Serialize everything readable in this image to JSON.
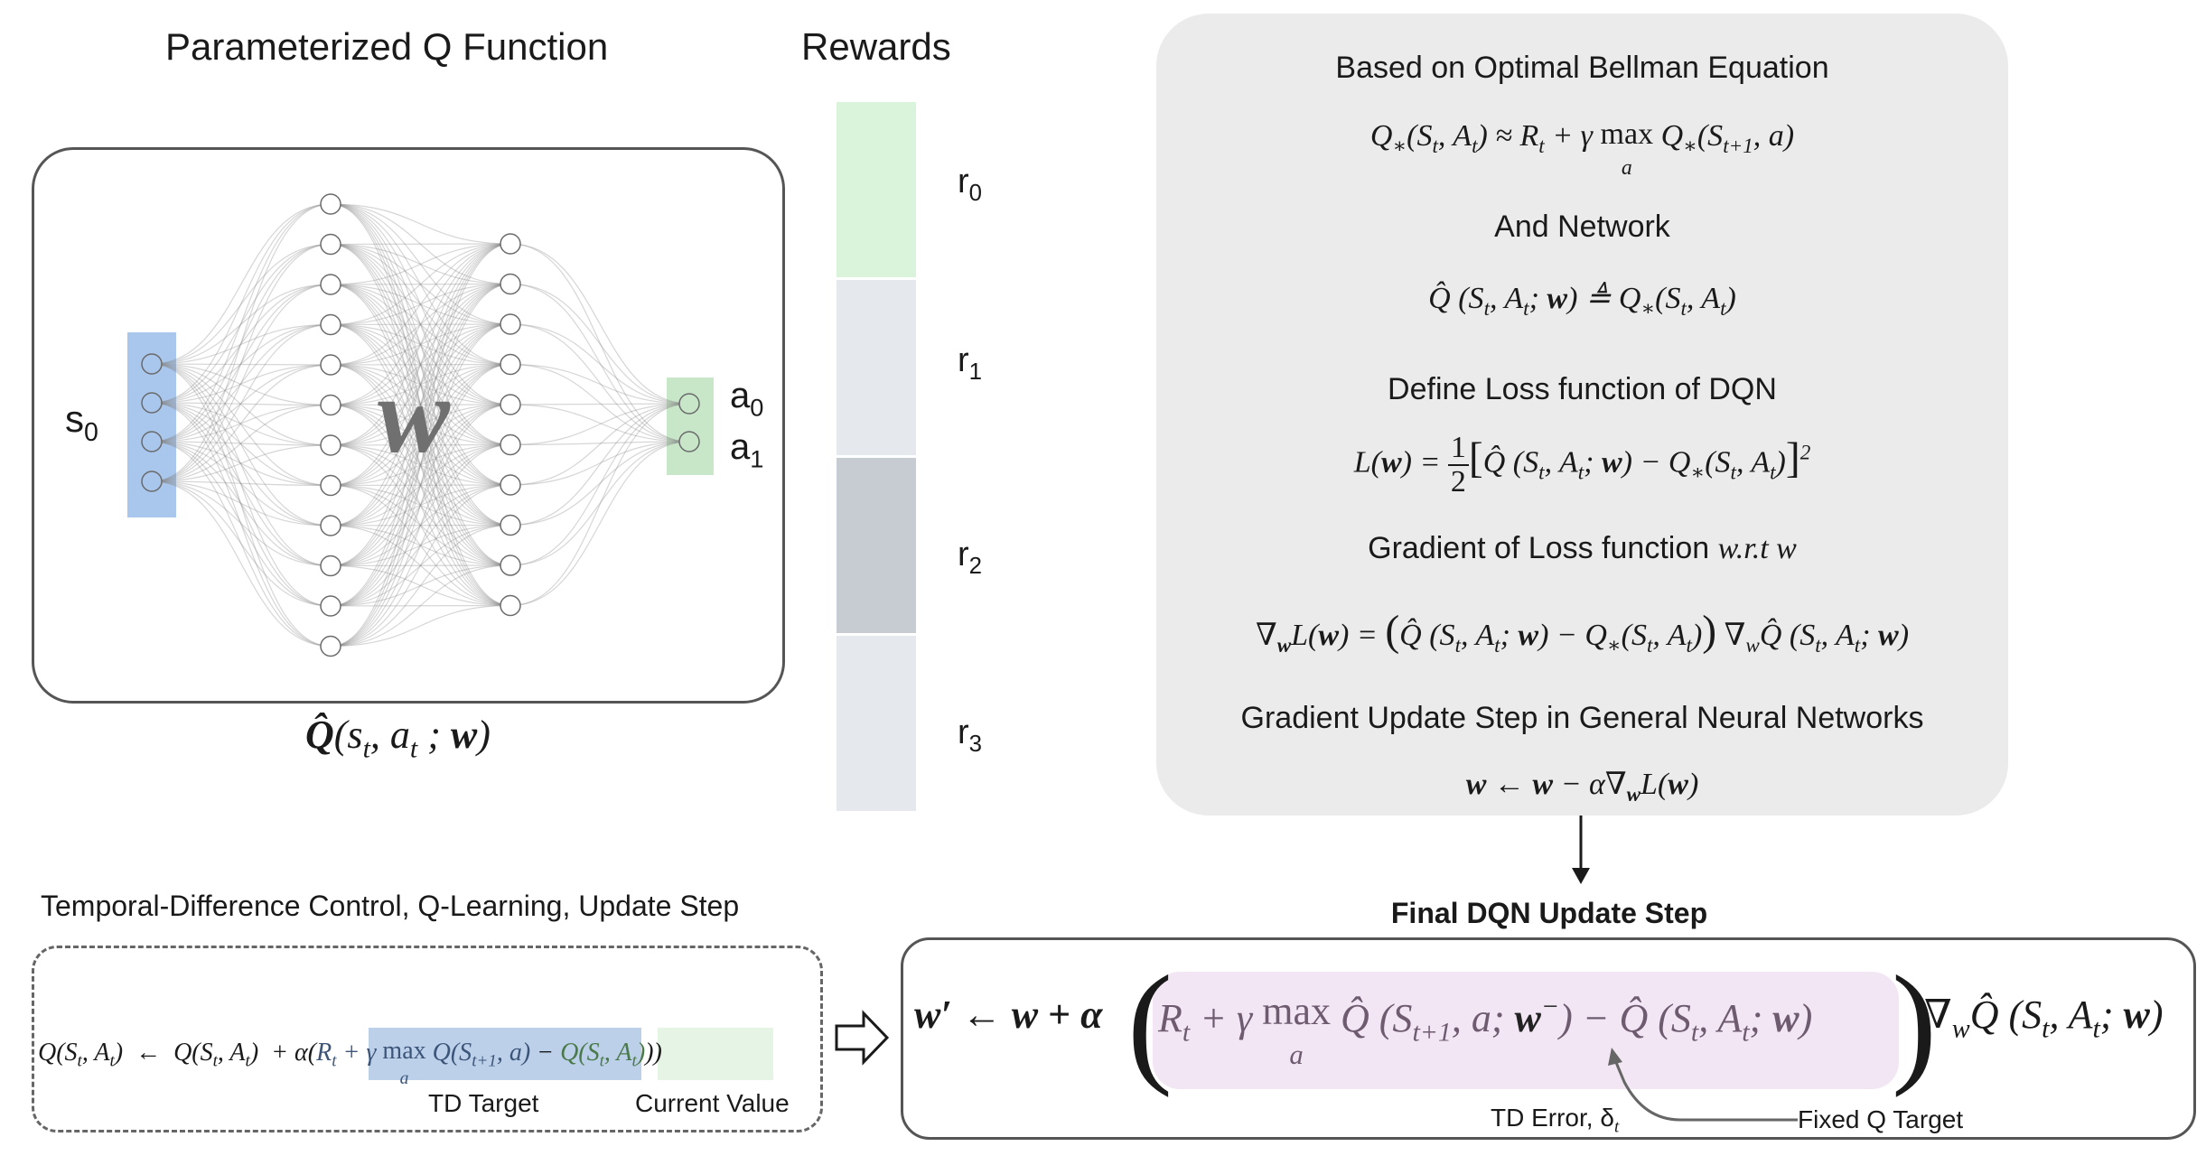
{
  "network_panel": {
    "title": "Parameterized Q Function",
    "input_label": "s",
    "input_label_sub": "0",
    "output_labels": [
      {
        "main": "a",
        "sub": "0"
      },
      {
        "main": "a",
        "sub": "1"
      }
    ],
    "weights_symbol": "w",
    "caption": "Q̂(s_t, a_t; w)",
    "colors": {
      "input": "#a9c6ec",
      "output": "#c8e7c9"
    }
  },
  "rewards_panel": {
    "title": "Rewards",
    "items": [
      {
        "main": "r",
        "sub": "0",
        "color": "#daf4dc"
      },
      {
        "main": "r",
        "sub": "1",
        "color": "#e5e8ec"
      },
      {
        "main": "r",
        "sub": "2",
        "color": "#c7ccd2"
      },
      {
        "main": "r",
        "sub": "3",
        "color": "#e5e8ec"
      }
    ]
  },
  "derivation_panel": {
    "heading_1": "Based on Optimal Bellman Equation",
    "heading_2": "And Network",
    "heading_3": "Define Loss function of DQN",
    "heading_4": "Gradient of Loss function",
    "heading_4_math": "w.r.t w",
    "heading_5": "Gradient Update Step in General Neural Networks"
  },
  "td_panel": {
    "title": "Temporal-Difference Control, Q-Learning, Update Step",
    "td_target_label": "TD Target",
    "current_value_label": "Current Value",
    "colors": {
      "td_target": "#bcd0ea",
      "current_value": "#e6f4e6"
    }
  },
  "final_panel": {
    "title": "Final DQN Update Step",
    "td_error_label": "TD Error, δ",
    "td_error_sub": "t",
    "fixed_target_label": "Fixed Q Target",
    "colors": {
      "td_error": "#f3e6f4"
    }
  }
}
